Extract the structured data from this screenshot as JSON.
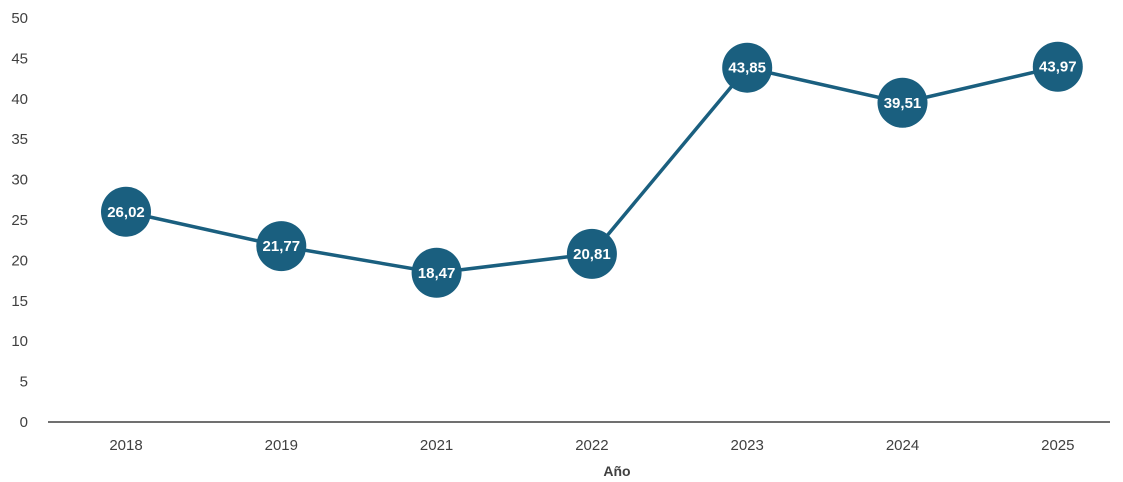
{
  "chart_data": {
    "type": "line",
    "categories": [
      "2018",
      "2019",
      "2021",
      "2022",
      "2023",
      "2024",
      "2025"
    ],
    "values": [
      26.02,
      21.77,
      18.47,
      20.81,
      43.85,
      39.51,
      43.97
    ],
    "value_labels": [
      "26,02",
      "21,77",
      "18,47",
      "20,81",
      "43,85",
      "39,51",
      "43,97"
    ],
    "title": "",
    "xlabel": "Año",
    "ylabel": "",
    "ylim": [
      0,
      50
    ],
    "yticks": [
      "0",
      "5",
      "10",
      "15",
      "20",
      "25",
      "30",
      "35",
      "40",
      "45",
      "50"
    ],
    "grid": false,
    "legend": "none",
    "colors": {
      "series": "#1a5f7f",
      "axis": "#404040",
      "label_text": "#ffffff"
    }
  }
}
